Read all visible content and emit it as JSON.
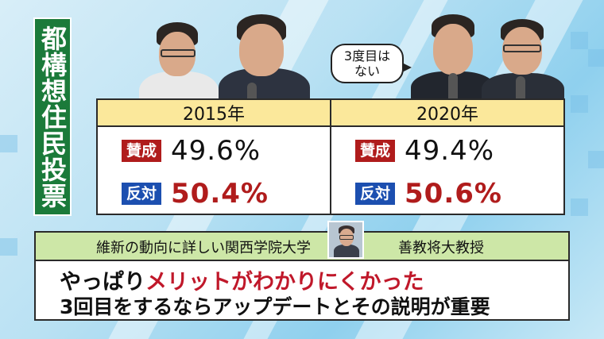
{
  "title": "都構想住民投票",
  "speech_bubble": [
    "3度目は",
    "ない"
  ],
  "results": [
    {
      "year": "2015年",
      "yes_label": "賛成",
      "yes_pct": "49.6%",
      "no_label": "反対",
      "no_pct": "50.4%"
    },
    {
      "year": "2020年",
      "yes_label": "賛成",
      "yes_pct": "49.4%",
      "no_label": "反対",
      "no_pct": "50.6%"
    }
  ],
  "speaker": {
    "affiliation": "維新の動向に詳しい関西学院大学",
    "name_title": "善教将大教授"
  },
  "quote": {
    "line1_prefix": "やっぱり",
    "line1_highlight": "メリットがわかりにくかった",
    "line2": "3回目をするならアップデートとその説明が重要"
  },
  "colors": {
    "title_bg": "#1b7a3a",
    "header_yellow": "#fbe89b",
    "yes_badge": "#b01c1c",
    "no_badge": "#1c4fb0",
    "no_pct_text": "#b01c1c",
    "quote_header": "#cde7a7",
    "quote_highlight": "#c0182a"
  }
}
